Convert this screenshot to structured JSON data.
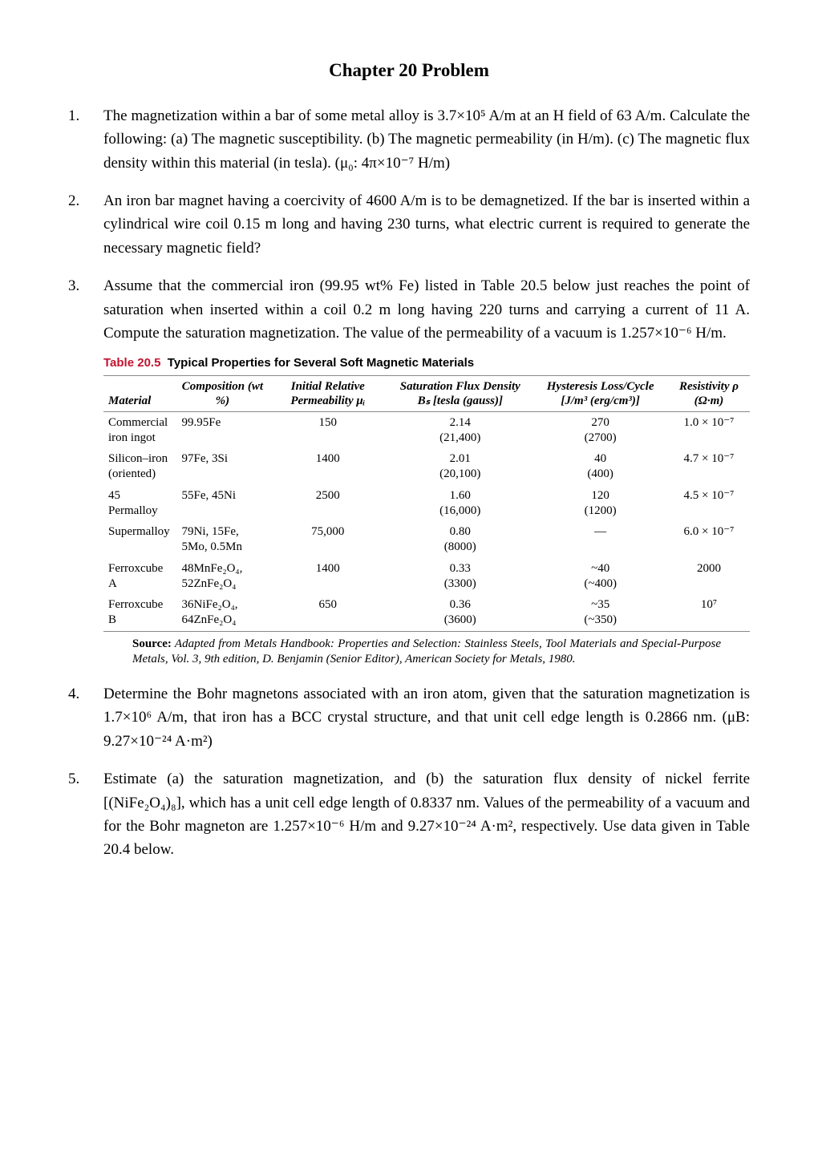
{
  "title": "Chapter 20 Problem",
  "problems": {
    "p1": "The magnetization within a bar of some metal alloy is 3.7×10⁵ A/m at an H field of 63 A/m. Calculate the following: (a) The magnetic susceptibility. (b) The magnetic permeability (in H/m). (c) The magnetic flux density within this material (in tesla). (μ₀: 4π×10⁻⁷ H/m)",
    "p2": "An iron bar magnet having a coercivity of 4600 A/m is to be demagnetized. If the bar is inserted within a cylindrical wire coil 0.15 m long and having 230 turns, what electric current is required to generate the necessary magnetic field?",
    "p3": "Assume that the commercial iron (99.95 wt% Fe) listed in Table 20.5 below just reaches the point of saturation when inserted within a coil 0.2 m long having 220 turns and carrying a current of 11 A. Compute the saturation magnetization. The value of the permeability of a vacuum is 1.257×10⁻⁶ H/m.",
    "p4": "Determine the Bohr magnetons associated with an iron atom, given that the saturation magnetization is 1.7×10⁶ A/m, that iron has a BCC crystal structure, and that unit cell edge length is 0.2866 nm. (μB: 9.27×10⁻²⁴ A·m²)",
    "p5": "Estimate (a) the saturation magnetization, and (b) the saturation flux density of nickel ferrite [(NiFe₂O₄)₈], which has a unit cell edge length of 0.8337 nm. Values of the permeability of a vacuum and for the Bohr magneton are 1.257×10⁻⁶ H/m and 9.27×10⁻²⁴ A·m², respectively. Use data given in Table 20.4 below."
  },
  "table": {
    "number": "Table 20.5",
    "title": "Typical Properties for Several Soft Magnetic Materials",
    "headers": {
      "material": "Material",
      "composition": "Composition\n(wt %)",
      "perm": "Initial Relative\nPermeability\nμᵢ",
      "flux": "Saturation\nFlux Density Bₛ\n[tesla (gauss)]",
      "hyst": "Hysteresis\nLoss/Cycle\n[J/m³ (erg/cm³)]",
      "res": "Resistivity ρ\n(Ω·m)"
    },
    "rows": [
      {
        "mat": "Commercial\n  iron ingot",
        "comp": "99.95Fe",
        "perm": "150",
        "flux": "2.14\n(21,400)",
        "hyst": "270\n(2700)",
        "res": "1.0 × 10⁻⁷"
      },
      {
        "mat": "Silicon–iron\n  (oriented)",
        "comp": "97Fe, 3Si",
        "perm": "1400",
        "flux": "2.01\n(20,100)",
        "hyst": "40\n(400)",
        "res": "4.7 × 10⁻⁷"
      },
      {
        "mat": "45 Permalloy",
        "comp": "55Fe, 45Ni",
        "perm": "2500",
        "flux": "1.60\n(16,000)",
        "hyst": "120\n(1200)",
        "res": "4.5 × 10⁻⁷"
      },
      {
        "mat": "Supermalloy",
        "comp": "79Ni, 15Fe,\n  5Mo, 0.5Mn",
        "perm": "75,000",
        "flux": "0.80\n(8000)",
        "hyst": "—",
        "res": "6.0 × 10⁻⁷"
      },
      {
        "mat": "Ferroxcube A",
        "comp": "48MnFe₂O₄,\n  52ZnFe₂O₄",
        "perm": "1400",
        "flux": "0.33\n(3300)",
        "hyst": "~40\n(~400)",
        "res": "2000"
      },
      {
        "mat": "Ferroxcube B",
        "comp": "36NiFe₂O₄,\n  64ZnFe₂O₄",
        "perm": "650",
        "flux": "0.36\n(3600)",
        "hyst": "~35\n(~350)",
        "res": "10⁷"
      }
    ],
    "source_label": "Source:",
    "source_text": " Adapted from Metals Handbook: Properties and Selection: Stainless Steels, Tool Materials and Special-Purpose Metals, Vol. 3, 9th edition, D. Benjamin (Senior Editor), American Society for Metals, 1980."
  }
}
